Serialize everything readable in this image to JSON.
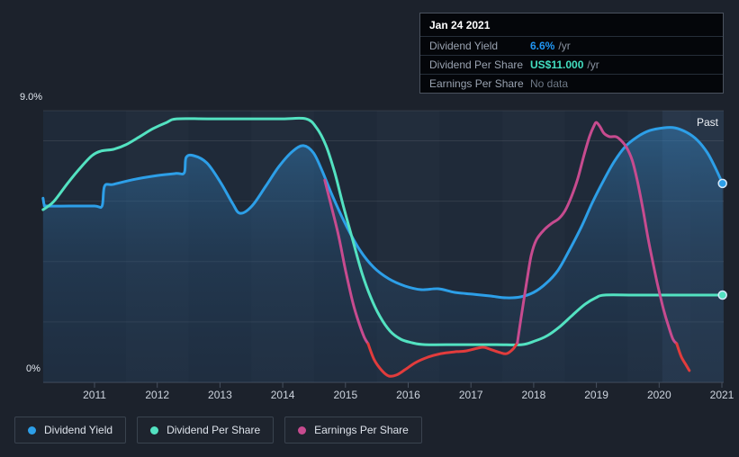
{
  "tooltip": {
    "title": "Jan 24 2021",
    "rows": [
      {
        "label": "Dividend Yield",
        "value": "6.6%",
        "suffix": "/yr",
        "color": "#2196f3"
      },
      {
        "label": "Dividend Per Share",
        "value": "US$11.000",
        "suffix": "/yr",
        "color": "#43dfc1"
      },
      {
        "label": "Earnings Per Share",
        "value": "No data",
        "suffix": "",
        "color": "#6e7886"
      }
    ]
  },
  "legend": {
    "items": [
      {
        "label": "Dividend Yield",
        "color": "#2d9fe8"
      },
      {
        "label": "Dividend Per Share",
        "color": "#53e2c1"
      },
      {
        "label": "Earnings Per Share",
        "color": "#c74b8f"
      }
    ]
  },
  "chart_data": {
    "type": "line",
    "title": "Dividend history chart",
    "x_axis": {
      "tick_labels": [
        "2011",
        "2012",
        "2013",
        "2014",
        "2015",
        "2016",
        "2017",
        "2018",
        "2019",
        "2020",
        "2021"
      ],
      "tick_years": [
        2011,
        2012,
        2013,
        2014,
        2015,
        2016,
        2017,
        2018,
        2019,
        2020,
        2021
      ]
    },
    "y_axis": {
      "min": 0,
      "max": 9,
      "gridline_values": [
        2,
        4,
        6,
        8,
        9
      ],
      "labels": [
        {
          "value": 9,
          "text": "9.0%"
        },
        {
          "value": 0,
          "text": "0%"
        }
      ],
      "grid": true
    },
    "past_region": {
      "start_year": 2020.05,
      "label": "Past"
    },
    "legend_position": "bottom-left",
    "series": [
      {
        "name": "Dividend Yield",
        "color": "#2d9fe8",
        "fill": true,
        "end_marker": true,
        "unit": "percent",
        "points": [
          [
            2010.18,
            6.1
          ],
          [
            2010.2,
            5.88
          ],
          [
            2010.24,
            5.84
          ],
          [
            2010.6,
            5.84
          ],
          [
            2011.0,
            5.84
          ],
          [
            2011.12,
            5.84
          ],
          [
            2011.16,
            6.5
          ],
          [
            2011.3,
            6.56
          ],
          [
            2011.65,
            6.73
          ],
          [
            2012.0,
            6.85
          ],
          [
            2012.3,
            6.92
          ],
          [
            2012.43,
            6.94
          ],
          [
            2012.46,
            7.45
          ],
          [
            2012.58,
            7.51
          ],
          [
            2012.79,
            7.27
          ],
          [
            2013.01,
            6.62
          ],
          [
            2013.2,
            5.93
          ],
          [
            2013.32,
            5.6
          ],
          [
            2013.51,
            5.84
          ],
          [
            2013.73,
            6.5
          ],
          [
            2013.94,
            7.15
          ],
          [
            2014.16,
            7.66
          ],
          [
            2014.33,
            7.84
          ],
          [
            2014.49,
            7.6
          ],
          [
            2014.63,
            7.0
          ],
          [
            2014.8,
            6.14
          ],
          [
            2015.02,
            5.16
          ],
          [
            2015.23,
            4.38
          ],
          [
            2015.45,
            3.81
          ],
          [
            2015.69,
            3.43
          ],
          [
            2015.95,
            3.19
          ],
          [
            2016.21,
            3.07
          ],
          [
            2016.48,
            3.1
          ],
          [
            2016.74,
            2.98
          ],
          [
            2017.03,
            2.92
          ],
          [
            2017.31,
            2.86
          ],
          [
            2017.56,
            2.8
          ],
          [
            2017.79,
            2.83
          ],
          [
            2018.0,
            2.98
          ],
          [
            2018.2,
            3.28
          ],
          [
            2018.39,
            3.72
          ],
          [
            2018.57,
            4.38
          ],
          [
            2018.76,
            5.15
          ],
          [
            2018.93,
            5.93
          ],
          [
            2019.11,
            6.67
          ],
          [
            2019.28,
            7.3
          ],
          [
            2019.46,
            7.81
          ],
          [
            2019.65,
            8.13
          ],
          [
            2019.85,
            8.34
          ],
          [
            2020.07,
            8.43
          ],
          [
            2020.25,
            8.43
          ],
          [
            2020.44,
            8.28
          ],
          [
            2020.61,
            8.02
          ],
          [
            2020.77,
            7.6
          ],
          [
            2020.9,
            7.09
          ],
          [
            2021.01,
            6.59
          ]
        ]
      },
      {
        "name": "Dividend Per Share",
        "color": "#53e2c1",
        "fill": false,
        "end_marker": true,
        "unit": "display-scale",
        "points": [
          [
            2010.18,
            5.72
          ],
          [
            2010.35,
            5.99
          ],
          [
            2010.57,
            6.59
          ],
          [
            2010.78,
            7.12
          ],
          [
            2010.96,
            7.51
          ],
          [
            2011.1,
            7.66
          ],
          [
            2011.3,
            7.72
          ],
          [
            2011.5,
            7.87
          ],
          [
            2011.72,
            8.14
          ],
          [
            2011.93,
            8.4
          ],
          [
            2012.15,
            8.61
          ],
          [
            2012.31,
            8.73
          ],
          [
            2012.8,
            8.73
          ],
          [
            2013.5,
            8.73
          ],
          [
            2014.0,
            8.73
          ],
          [
            2014.37,
            8.73
          ],
          [
            2014.54,
            8.43
          ],
          [
            2014.69,
            7.84
          ],
          [
            2014.83,
            6.94
          ],
          [
            2014.97,
            5.81
          ],
          [
            2015.12,
            4.68
          ],
          [
            2015.26,
            3.64
          ],
          [
            2015.4,
            2.83
          ],
          [
            2015.55,
            2.18
          ],
          [
            2015.71,
            1.7
          ],
          [
            2015.88,
            1.43
          ],
          [
            2016.06,
            1.31
          ],
          [
            2016.27,
            1.25
          ],
          [
            2016.8,
            1.25
          ],
          [
            2017.4,
            1.25
          ],
          [
            2017.81,
            1.25
          ],
          [
            2018.02,
            1.37
          ],
          [
            2018.22,
            1.55
          ],
          [
            2018.42,
            1.85
          ],
          [
            2018.62,
            2.23
          ],
          [
            2018.82,
            2.59
          ],
          [
            2018.99,
            2.8
          ],
          [
            2019.13,
            2.89
          ],
          [
            2019.6,
            2.89
          ],
          [
            2020.2,
            2.89
          ],
          [
            2021.01,
            2.89
          ]
        ]
      },
      {
        "name": "Earnings Per Share",
        "color": "#c74b8f",
        "negative_color": "#e23c3c",
        "fill": false,
        "end_marker": false,
        "unit": "display-scale",
        "segments": [
          {
            "color": "#c74b8f",
            "points": [
              [
                2014.67,
                6.7
              ],
              [
                2014.77,
                5.87
              ],
              [
                2014.89,
                4.86
              ],
              [
                2015.0,
                3.72
              ],
              [
                2015.12,
                2.62
              ],
              [
                2015.22,
                1.94
              ],
              [
                2015.3,
                1.49
              ],
              [
                2015.36,
                1.28
              ]
            ]
          },
          {
            "color": "#e23c3c",
            "points": [
              [
                2015.36,
                1.28
              ],
              [
                2015.46,
                0.74
              ],
              [
                2015.58,
                0.39
              ],
              [
                2015.69,
                0.21
              ],
              [
                2015.81,
                0.24
              ],
              [
                2015.95,
                0.42
              ],
              [
                2016.12,
                0.66
              ],
              [
                2016.31,
                0.83
              ],
              [
                2016.52,
                0.95
              ],
              [
                2016.74,
                1.01
              ],
              [
                2016.92,
                1.04
              ],
              [
                2017.1,
                1.13
              ],
              [
                2017.21,
                1.16
              ],
              [
                2017.34,
                1.07
              ],
              [
                2017.47,
                0.98
              ],
              [
                2017.57,
                0.95
              ],
              [
                2017.67,
                1.1
              ],
              [
                2017.74,
                1.31
              ]
            ]
          },
          {
            "color": "#c74b8f",
            "points": [
              [
                2017.74,
                1.31
              ],
              [
                2017.81,
                2.29
              ],
              [
                2017.89,
                3.34
              ],
              [
                2017.96,
                4.2
              ],
              [
                2018.04,
                4.71
              ],
              [
                2018.16,
                5.04
              ],
              [
                2018.29,
                5.27
              ],
              [
                2018.4,
                5.42
              ],
              [
                2018.5,
                5.69
              ],
              [
                2018.6,
                6.14
              ],
              [
                2018.7,
                6.73
              ],
              [
                2018.8,
                7.51
              ],
              [
                2018.89,
                8.14
              ],
              [
                2018.96,
                8.49
              ],
              [
                2019.0,
                8.61
              ],
              [
                2019.06,
                8.46
              ],
              [
                2019.12,
                8.25
              ],
              [
                2019.21,
                8.14
              ],
              [
                2019.31,
                8.14
              ],
              [
                2019.39,
                8.02
              ],
              [
                2019.48,
                7.78
              ],
              [
                2019.57,
                7.36
              ],
              [
                2019.65,
                6.7
              ],
              [
                2019.74,
                5.75
              ],
              [
                2019.82,
                4.8
              ],
              [
                2019.91,
                3.87
              ],
              [
                2019.98,
                3.19
              ],
              [
                2020.07,
                2.41
              ],
              [
                2020.15,
                1.85
              ],
              [
                2020.22,
                1.43
              ],
              [
                2020.28,
                1.28
              ]
            ]
          },
          {
            "color": "#e23c3c",
            "points": [
              [
                2020.28,
                1.28
              ],
              [
                2020.35,
                0.86
              ],
              [
                2020.43,
                0.57
              ],
              [
                2020.48,
                0.39
              ]
            ]
          }
        ]
      }
    ],
    "colors": {
      "page_bg": "#1c222c",
      "plot_bg": "#1f2a39",
      "gridline": "rgba(255,255,255,0.09)",
      "baseline": "#46505f",
      "past_overlay": "rgba(125,170,220,0.09)",
      "axis_text": "#cdd4de",
      "past_text": "#eef2f7",
      "marker_ring": "#d6e9fa"
    }
  }
}
